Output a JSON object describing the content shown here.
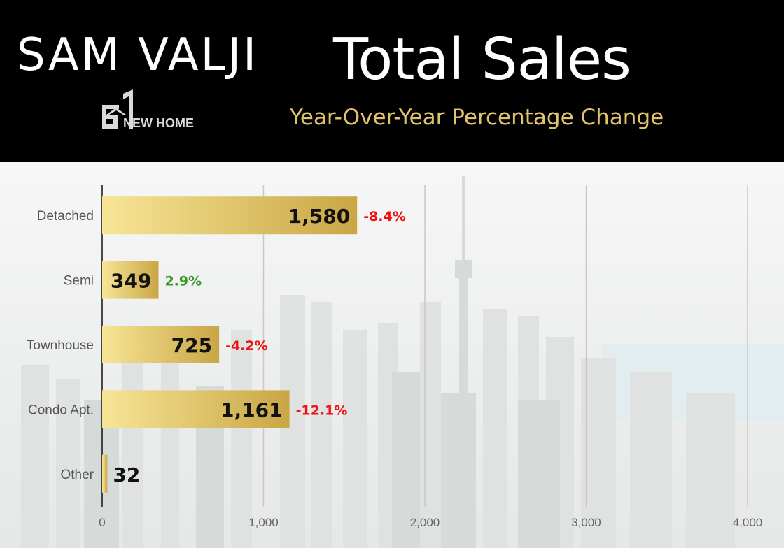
{
  "header": {
    "brand_name": "SAM VALJI",
    "logo_text": "NEW HOME",
    "title": "Total Sales",
    "subtitle": "Year-Over-Year Percentage Change"
  },
  "colors": {
    "header_bg": "#000000",
    "title": "#ffffff",
    "subtitle": "#e2c36d",
    "bar_light": "#f7e596",
    "bar_dark": "#c9a645",
    "positive": "#3a9a28",
    "negative": "#ee1111",
    "value_label": "#111111",
    "gridline": "#c8c8c8"
  },
  "chart_data": {
    "type": "bar",
    "orientation": "horizontal",
    "title": "Total Sales",
    "subtitle": "Year-Over-Year Percentage Change",
    "categories": [
      "Detached",
      "Semi",
      "Townhouse",
      "Condo Apt.",
      "Other"
    ],
    "values": [
      1580,
      349,
      725,
      1161,
      32
    ],
    "value_labels": [
      "1,580",
      "349",
      "725",
      "1,161",
      "32"
    ],
    "yoy_change_labels": [
      "-8.4%",
      "2.9%",
      "-4.2%",
      "-12.1%",
      ""
    ],
    "yoy_change_values": [
      -8.4,
      2.9,
      -4.2,
      -12.1,
      null
    ],
    "x_ticks": [
      0,
      1000,
      2000,
      3000,
      4000
    ],
    "x_tick_labels": [
      "0",
      "1,000",
      "2,000",
      "3,000",
      "4,000"
    ],
    "xlim": [
      0,
      4000
    ],
    "grid": true,
    "legend": "none"
  }
}
